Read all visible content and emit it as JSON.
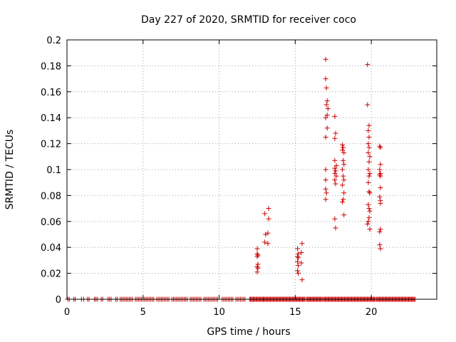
{
  "chart_data": {
    "type": "scatter",
    "title": "Day 227 of 2020, SRMTID for receiver coco",
    "xlabel": "GPS time / hours",
    "ylabel": "SRMTID / TECUs",
    "xlim": [
      0,
      24.3
    ],
    "ylim": [
      0,
      0.2
    ],
    "xticks": [
      0,
      5,
      10,
      15,
      20
    ],
    "xtick_labels": [
      "0",
      "5",
      "10",
      "15",
      "20"
    ],
    "yticks": [
      0,
      0.02,
      0.04,
      0.06,
      0.08,
      0.1,
      0.12,
      0.14,
      0.16,
      0.18,
      0.2
    ],
    "ytick_labels": [
      "0",
      "0.02",
      "0.04",
      "0.06",
      "0.08",
      "0.1",
      "0.12",
      "0.14",
      "0.16",
      "0.18",
      "0.2"
    ],
    "grid": true,
    "marker": "+",
    "color": "#cc0000",
    "series": [
      {
        "name": "SRMTID",
        "points": [
          [
            12.5,
            0.039
          ],
          [
            12.5,
            0.035
          ],
          [
            12.55,
            0.034
          ],
          [
            12.5,
            0.033
          ],
          [
            12.55,
            0.027
          ],
          [
            12.5,
            0.025
          ],
          [
            12.55,
            0.024
          ],
          [
            12.5,
            0.021
          ],
          [
            13.0,
            0.066
          ],
          [
            13.05,
            0.05
          ],
          [
            13.0,
            0.044
          ],
          [
            13.25,
            0.07
          ],
          [
            13.25,
            0.062
          ],
          [
            13.2,
            0.051
          ],
          [
            13.2,
            0.043
          ],
          [
            15.15,
            0.039
          ],
          [
            15.2,
            0.035
          ],
          [
            15.15,
            0.033
          ],
          [
            15.2,
            0.032
          ],
          [
            15.15,
            0.029
          ],
          [
            15.2,
            0.026
          ],
          [
            15.15,
            0.022
          ],
          [
            15.2,
            0.02
          ],
          [
            15.45,
            0.043
          ],
          [
            15.4,
            0.036
          ],
          [
            15.4,
            0.028
          ],
          [
            15.45,
            0.015
          ],
          [
            17.0,
            0.185
          ],
          [
            17.0,
            0.17
          ],
          [
            17.05,
            0.163
          ],
          [
            17.1,
            0.153
          ],
          [
            17.05,
            0.15
          ],
          [
            17.15,
            0.147
          ],
          [
            17.1,
            0.142
          ],
          [
            17.0,
            0.14
          ],
          [
            17.1,
            0.132
          ],
          [
            17.0,
            0.125
          ],
          [
            17.0,
            0.1
          ],
          [
            17.0,
            0.092
          ],
          [
            17.0,
            0.085
          ],
          [
            17.05,
            0.082
          ],
          [
            17.0,
            0.077
          ],
          [
            17.6,
            0.141
          ],
          [
            17.65,
            0.128
          ],
          [
            17.6,
            0.124
          ],
          [
            17.6,
            0.107
          ],
          [
            17.7,
            0.103
          ],
          [
            17.6,
            0.101
          ],
          [
            17.65,
            0.099
          ],
          [
            17.6,
            0.097
          ],
          [
            17.7,
            0.095
          ],
          [
            17.6,
            0.092
          ],
          [
            17.65,
            0.089
          ],
          [
            17.6,
            0.062
          ],
          [
            17.65,
            0.055
          ],
          [
            18.1,
            0.119
          ],
          [
            18.15,
            0.117
          ],
          [
            18.1,
            0.115
          ],
          [
            18.2,
            0.113
          ],
          [
            18.15,
            0.107
          ],
          [
            18.2,
            0.104
          ],
          [
            18.1,
            0.1
          ],
          [
            18.15,
            0.095
          ],
          [
            18.2,
            0.092
          ],
          [
            18.1,
            0.088
          ],
          [
            18.2,
            0.082
          ],
          [
            18.15,
            0.077
          ],
          [
            18.1,
            0.075
          ],
          [
            18.2,
            0.065
          ],
          [
            19.75,
            0.181
          ],
          [
            19.75,
            0.15
          ],
          [
            19.85,
            0.134
          ],
          [
            19.8,
            0.13
          ],
          [
            19.85,
            0.125
          ],
          [
            19.8,
            0.12
          ],
          [
            19.85,
            0.117
          ],
          [
            19.8,
            0.113
          ],
          [
            19.9,
            0.11
          ],
          [
            19.85,
            0.106
          ],
          [
            19.8,
            0.1
          ],
          [
            19.9,
            0.097
          ],
          [
            19.85,
            0.095
          ],
          [
            19.8,
            0.09
          ],
          [
            19.85,
            0.083
          ],
          [
            19.9,
            0.082
          ],
          [
            19.8,
            0.073
          ],
          [
            19.85,
            0.07
          ],
          [
            19.9,
            0.068
          ],
          [
            19.85,
            0.063
          ],
          [
            19.8,
            0.06
          ],
          [
            19.75,
            0.058
          ],
          [
            19.9,
            0.054
          ],
          [
            20.55,
            0.118
          ],
          [
            20.6,
            0.117
          ],
          [
            20.6,
            0.104
          ],
          [
            20.55,
            0.1
          ],
          [
            20.6,
            0.097
          ],
          [
            20.55,
            0.096
          ],
          [
            20.6,
            0.095
          ],
          [
            20.6,
            0.086
          ],
          [
            20.55,
            0.079
          ],
          [
            20.6,
            0.076
          ],
          [
            20.6,
            0.074
          ],
          [
            20.6,
            0.054
          ],
          [
            20.55,
            0.052
          ],
          [
            20.55,
            0.042
          ],
          [
            20.6,
            0.039
          ]
        ],
        "zero_ranges": [
          [
            0.05,
            0.15,
            0.1
          ],
          [
            0.45,
            0.55,
            0.1
          ],
          [
            0.95,
            1.1,
            0.15
          ],
          [
            1.35,
            1.45,
            0.1
          ],
          [
            1.8,
            2.0,
            0.1
          ],
          [
            2.25,
            2.35,
            0.1
          ],
          [
            2.7,
            2.9,
            0.1
          ],
          [
            3.2,
            3.3,
            0.1
          ],
          [
            3.5,
            4.3,
            0.1
          ],
          [
            4.5,
            5.7,
            0.1
          ],
          [
            5.9,
            6.7,
            0.1
          ],
          [
            6.9,
            7.9,
            0.1
          ],
          [
            8.1,
            8.8,
            0.1
          ],
          [
            9.0,
            9.9,
            0.1
          ],
          [
            10.2,
            10.9,
            0.1
          ],
          [
            11.1,
            11.7,
            0.1
          ],
          [
            12.0,
            12.9,
            0.06
          ],
          [
            12.95,
            15.7,
            0.06
          ],
          [
            15.75,
            16.8,
            0.06
          ],
          [
            16.85,
            20.3,
            0.06
          ],
          [
            20.35,
            22.9,
            0.06
          ]
        ]
      }
    ]
  }
}
